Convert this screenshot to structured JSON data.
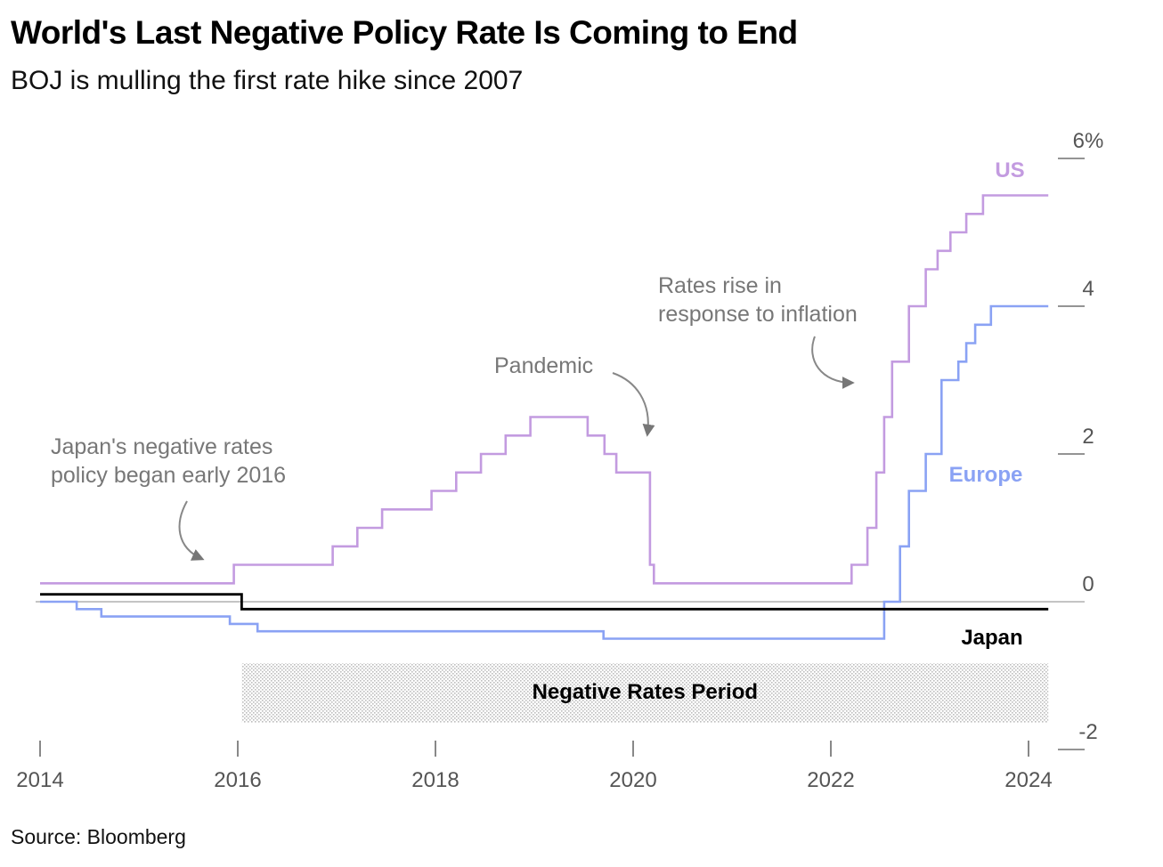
{
  "title": "World's Last Negative Policy Rate Is Coming to End",
  "subtitle": "BOJ is mulling the first rate hike since 2007",
  "source": "Source: Bloomberg",
  "colors": {
    "US": "#c39be0",
    "Europe": "#8aa2f4",
    "Japan": "#000000",
    "annotation": "#777777",
    "axis": "#555555"
  },
  "chart_data": {
    "type": "line",
    "step": true,
    "xlabel": "",
    "ylabel": "",
    "xlim": [
      2014,
      2024.2
    ],
    "ylim": [
      -2,
      6
    ],
    "x_ticks": [
      2014,
      2016,
      2018,
      2020,
      2022,
      2024
    ],
    "y_ticks": [
      -2,
      0,
      2,
      4,
      6
    ],
    "y_tick_labels": [
      "-2",
      "0",
      "2",
      "4",
      "6%"
    ],
    "grid": false,
    "series": [
      {
        "name": "US",
        "x": [
          2014,
          2015.96,
          2016.96,
          2017.21,
          2017.46,
          2017.96,
          2018.21,
          2018.46,
          2018.71,
          2018.96,
          2019.54,
          2019.71,
          2019.83,
          2020.17,
          2020.21,
          2022.21,
          2022.37,
          2022.46,
          2022.54,
          2022.62,
          2022.79,
          2022.96,
          2023.08,
          2023.21,
          2023.37,
          2023.54,
          2024.2
        ],
        "y": [
          0.25,
          0.5,
          0.75,
          1.0,
          1.25,
          1.5,
          1.75,
          2.0,
          2.25,
          2.5,
          2.25,
          2.0,
          1.75,
          0.5,
          0.25,
          0.5,
          1.0,
          1.75,
          2.5,
          3.25,
          4.0,
          4.5,
          4.75,
          5.0,
          5.25,
          5.5,
          5.5
        ]
      },
      {
        "name": "Europe",
        "x": [
          2014,
          2014.37,
          2014.62,
          2015.92,
          2016.2,
          2019.7,
          2022.54,
          2022.7,
          2022.79,
          2022.96,
          2023.12,
          2023.29,
          2023.37,
          2023.46,
          2023.62,
          2024.2
        ],
        "y": [
          0.0,
          -0.1,
          -0.2,
          -0.3,
          -0.4,
          -0.5,
          0.0,
          0.75,
          1.5,
          2.0,
          3.0,
          3.25,
          3.5,
          3.75,
          4.0,
          4.0
        ]
      },
      {
        "name": "Japan",
        "x": [
          2014,
          2016.04,
          2024.2
        ],
        "y": [
          0.1,
          -0.1,
          -0.1
        ]
      }
    ],
    "shaded_period": {
      "label": "Negative Rates Period",
      "x_start": 2016.04,
      "x_end": 2024.2
    },
    "annotations": [
      {
        "text": [
          "Japan's negative rates",
          "policy began early 2016"
        ]
      },
      {
        "text": [
          "Pandemic"
        ]
      },
      {
        "text": [
          "Rates rise in",
          "response to inflation"
        ]
      }
    ]
  }
}
